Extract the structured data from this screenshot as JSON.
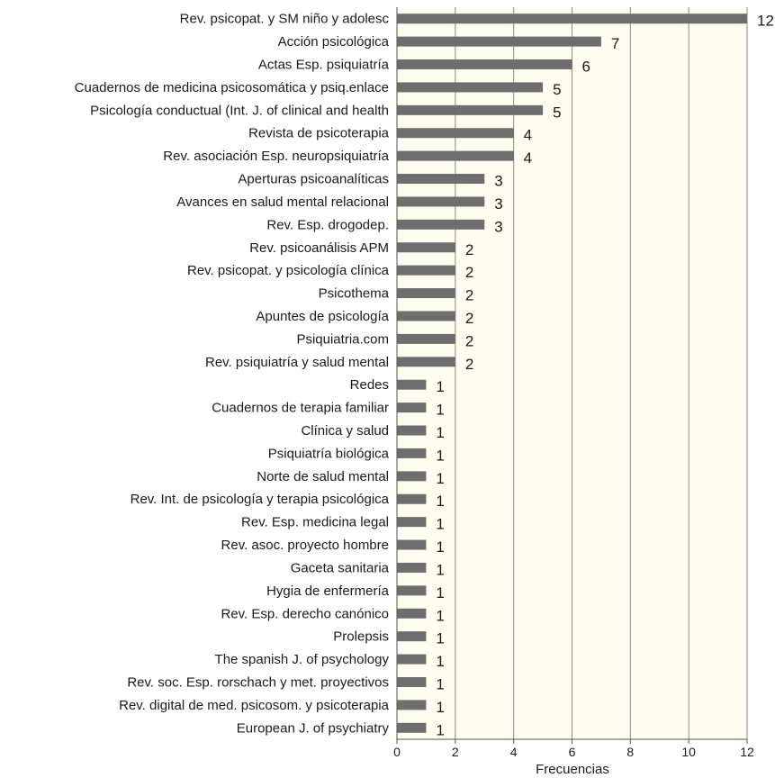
{
  "chart_data": {
    "type": "bar",
    "orientation": "horizontal",
    "title": "",
    "xlabel": "Frecuencias",
    "ylabel": "",
    "xlim": [
      0,
      12
    ],
    "xticks": [
      0,
      2,
      4,
      6,
      8,
      10,
      12
    ],
    "grid": true,
    "legend": "none",
    "colors": {
      "bar": "#6e6e6e",
      "plot_bg": "#fdfdf0",
      "grid": "#8a8a8a"
    },
    "categories": [
      "Rev. psicopat. y SM niño y adolesc",
      "Acción psicológica",
      "Actas Esp. psiquiatría",
      "Cuadernos de medicina psicosomática y psiq.enlace",
      "Psicología conductual (Int. J. of clinical and health",
      "Revista de psicoterapia",
      "Rev. asociación Esp. neuropsiquiatría",
      "Aperturas psicoanalíticas",
      "Avances en salud mental relacional",
      "Rev. Esp. drogodep.",
      "Rev. psicoanálisis APM",
      "Rev. psicopat. y psicología clínica",
      "Psicothema",
      "Apuntes de psicología",
      "Psiquiatria.com",
      "Rev. psiquiatría y salud mental",
      "Redes",
      "Cuadernos de terapia familiar",
      "Clínica y salud",
      "Psiquiatría biológica",
      "Norte de salud mental",
      "Rev. Int. de psicología y terapia psicológica",
      "Rev. Esp. medicina legal",
      "Rev. asoc. proyecto hombre",
      "Gaceta sanitaria",
      "Hygia de enfermería",
      "Rev. Esp. derecho canónico",
      "Prolepsis",
      "The spanish J. of psychology",
      "Rev. soc. Esp. rorschach y met. proyectivos",
      "Rev. digital de med. psicosom. y psicoterapia",
      "European J. of psychiatry"
    ],
    "values": [
      12,
      7,
      6,
      5,
      5,
      4,
      4,
      3,
      3,
      3,
      2,
      2,
      2,
      2,
      2,
      2,
      1,
      1,
      1,
      1,
      1,
      1,
      1,
      1,
      1,
      1,
      1,
      1,
      1,
      1,
      1,
      1
    ]
  }
}
